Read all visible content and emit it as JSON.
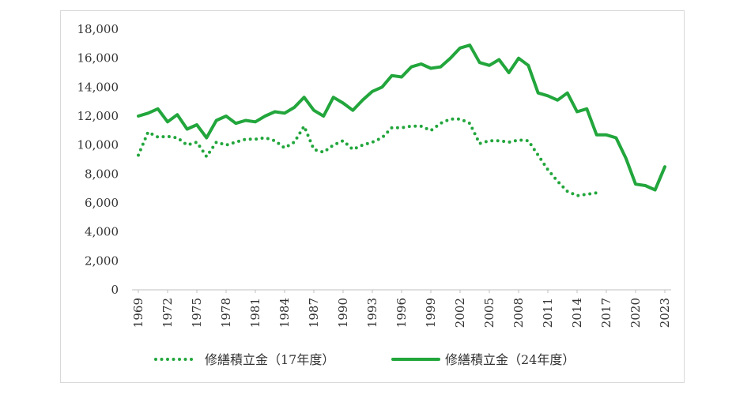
{
  "chart_data": {
    "type": "line",
    "title": "",
    "xlabel": "",
    "ylabel": "",
    "ylim": [
      0,
      18000
    ],
    "yticks": [
      "18,000",
      "16,000",
      "14,000",
      "12,000",
      "10,000",
      "8,000",
      "6,000",
      "4,000",
      "2,000",
      "0"
    ],
    "xticks": [
      "1969",
      "1972",
      "1975",
      "1978",
      "1981",
      "1984",
      "1987",
      "1990",
      "1993",
      "1996",
      "1999",
      "2002",
      "2005",
      "2008",
      "2011",
      "2014",
      "2017",
      "2020",
      "2023"
    ],
    "grid": false,
    "legend_position": "bottom",
    "series": [
      {
        "name": "修繕積立金（17年度）",
        "color": "#22a63c",
        "style": "dotted",
        "x": [
          1969,
          1970,
          1971,
          1972,
          1973,
          1974,
          1975,
          1976,
          1977,
          1978,
          1979,
          1980,
          1981,
          1982,
          1983,
          1984,
          1985,
          1986,
          1987,
          1988,
          1989,
          1990,
          1991,
          1992,
          1993,
          1994,
          1995,
          1996,
          1997,
          1998,
          1999,
          2000,
          2001,
          2002,
          2003,
          2004,
          2005,
          2006,
          2007,
          2008,
          2009,
          2010,
          2011,
          2012,
          2013,
          2014,
          2015,
          2016
        ],
        "values": [
          9300,
          10900,
          10550,
          10600,
          10500,
          10000,
          10200,
          9200,
          10200,
          10000,
          10200,
          10400,
          10400,
          10500,
          10300,
          9800,
          10200,
          11300,
          9700,
          9500,
          10000,
          10300,
          9700,
          10000,
          10200,
          10500,
          11200,
          11200,
          11300,
          11300,
          11000,
          11500,
          11800,
          11800,
          11500,
          10100,
          10300,
          10300,
          10200,
          10350,
          10300,
          9300,
          8300,
          7500,
          6800,
          6500,
          6600,
          6700
        ]
      },
      {
        "name": "修繕積立金（24年度）",
        "color": "#22a63c",
        "style": "solid",
        "x": [
          1969,
          1970,
          1971,
          1972,
          1973,
          1974,
          1975,
          1976,
          1977,
          1978,
          1979,
          1980,
          1981,
          1982,
          1983,
          1984,
          1985,
          1986,
          1987,
          1988,
          1989,
          1990,
          1991,
          1992,
          1993,
          1994,
          1995,
          1996,
          1997,
          1998,
          1999,
          2000,
          2001,
          2002,
          2003,
          2004,
          2005,
          2006,
          2007,
          2008,
          2009,
          2010,
          2011,
          2012,
          2013,
          2014,
          2015,
          2016,
          2017,
          2018,
          2019,
          2020,
          2021,
          2022,
          2023
        ],
        "values": [
          12000,
          12200,
          12500,
          11600,
          12100,
          11100,
          11400,
          10500,
          11700,
          12000,
          11500,
          11700,
          11600,
          12000,
          12300,
          12200,
          12600,
          13300,
          12400,
          12000,
          13300,
          12900,
          12400,
          13100,
          13700,
          14000,
          14800,
          14700,
          15400,
          15600,
          15300,
          15400,
          16000,
          16700,
          16900,
          15700,
          15500,
          15900,
          15000,
          16000,
          15500,
          13600,
          13400,
          13100,
          13600,
          12300,
          12500,
          10700,
          10700,
          10500,
          9100,
          7300,
          7200,
          6900,
          8500
        ]
      }
    ]
  }
}
